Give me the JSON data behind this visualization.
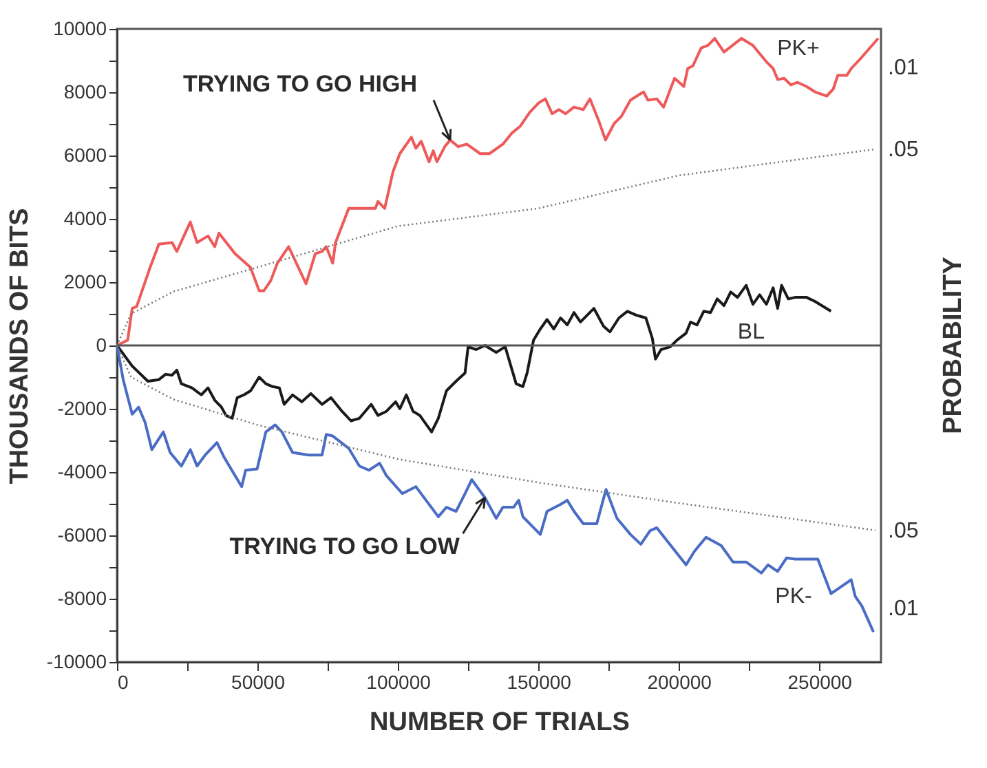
{
  "chart_data": {
    "type": "line",
    "xlabel": "NUMBER OF TRIALS",
    "ylabel": "THOUSANDS OF BITS",
    "y2label": "PROBABILITY",
    "xlim": [
      0,
      272000
    ],
    "xticks": [
      0,
      {
        "value": 25000,
        "label": null
      },
      50000,
      {
        "value": 75000,
        "label": null
      },
      100000,
      {
        "value": 125000,
        "label": null
      },
      150000,
      {
        "value": 175000,
        "label": null
      },
      200000,
      {
        "value": 225000,
        "label": null
      },
      250000
    ],
    "ylim": [
      -10000,
      10000
    ],
    "yticks": [
      -10000,
      {
        "value": -9000,
        "label": null
      },
      -8000,
      {
        "value": -7000,
        "label": null
      },
      -6000,
      {
        "value": -5000,
        "label": null
      },
      -4000,
      {
        "value": -3000,
        "label": null
      },
      -2000,
      {
        "value": -1000,
        "label": null
      },
      0,
      {
        "value": 1000,
        "label": null
      },
      2000,
      {
        "value": 3000,
        "label": null
      },
      4000,
      {
        "value": 5000,
        "label": null
      },
      6000,
      {
        "value": 7000,
        "label": null
      },
      8000,
      {
        "value": 9000,
        "label": null
      },
      10000
    ],
    "grid": false,
    "marker": "none",
    "ref_lines": [
      {
        "axis": "y",
        "value": 0,
        "color": "#555555"
      }
    ],
    "annotations": [
      {
        "text": "TRYING TO GO HIGH",
        "x": 118600,
        "y": 6490
      },
      {
        "text": "TRYING TO GO LOW",
        "x": 131000,
        "y": -4810
      },
      {
        "text": ".05",
        "x": 270000,
        "y": 6200
      },
      {
        "text": ".05",
        "x": 270000,
        "y": -5840
      },
      ".01",
      ".01"
    ],
    "series": [
      {
        "name": "PK+",
        "color": "#ee5a5a",
        "line_style": "solid",
        "x": [
          0,
          3800,
          5400,
          7000,
          11800,
          14900,
          19600,
          21300,
          26100,
          28500,
          32400,
          34800,
          36300,
          42000,
          47500,
          50600,
          52300,
          54700,
          57100,
          61100,
          67300,
          70600,
          73000,
          74500,
          76800,
          77800,
          82500,
          84900,
          92000,
          92900,
          95300,
          98300,
          100700,
          104800,
          106400,
          108300,
          111100,
          112600,
          113900,
          116700,
          118600,
          121500,
          124500,
          129300,
          132600,
          137400,
          140600,
          143600,
          146900,
          150100,
          152500,
          154900,
          157300,
          159700,
          162700,
          166000,
          168400,
          171500,
          173900,
          177000,
          179500,
          182800,
          185100,
          187500,
          189000,
          192200,
          194600,
          198500,
          201800,
          203200,
          205000,
          208000,
          210400,
          212800,
          216100,
          222300,
          226400,
          231200,
          233600,
          235200,
          237500,
          239900,
          242300,
          245500,
          248500,
          252700,
          255000,
          256600,
          259800,
          261400,
          264600,
          271000
        ],
        "values": [
          0,
          170,
          1170,
          1230,
          2470,
          3200,
          3250,
          2970,
          3900,
          3250,
          3460,
          3120,
          3550,
          2900,
          2470,
          1730,
          1730,
          2040,
          2600,
          3120,
          1950,
          2900,
          2970,
          3120,
          2600,
          3250,
          4330,
          4330,
          4330,
          4550,
          4330,
          5500,
          6060,
          6580,
          6230,
          6450,
          5800,
          6150,
          5800,
          6280,
          6490,
          6280,
          6360,
          6060,
          6060,
          6360,
          6710,
          6930,
          7360,
          7660,
          7790,
          7320,
          7450,
          7320,
          7530,
          7450,
          7790,
          7100,
          6490,
          7010,
          7230,
          7750,
          7880,
          8010,
          7750,
          7790,
          7530,
          8440,
          8180,
          8750,
          8830,
          9400,
          9480,
          9700,
          9270,
          9700,
          9480,
          8960,
          8750,
          8400,
          8440,
          8230,
          8310,
          8180,
          8010,
          7880,
          8100,
          8530,
          8530,
          8750,
          9050,
          9700
        ]
      },
      {
        "name": "BL",
        "color": "#1a1a1a",
        "line_style": "solid",
        "x": [
          0,
          5400,
          11000,
          14900,
          17300,
          19600,
          21300,
          22900,
          26700,
          30000,
          32400,
          34800,
          37200,
          38800,
          41000,
          42800,
          45200,
          47600,
          50600,
          53000,
          55400,
          57800,
          59500,
          62500,
          65800,
          69000,
          73000,
          76200,
          80100,
          83300,
          86300,
          90500,
          92900,
          95900,
          99200,
          100700,
          103000,
          105400,
          107800,
          112000,
          114400,
          117300,
          120700,
          123900,
          125000,
          127800,
          131000,
          135000,
          138200,
          142100,
          144500,
          146000,
          148300,
          150700,
          153100,
          155500,
          157900,
          160300,
          162700,
          165000,
          169800,
          173200,
          175500,
          178700,
          181700,
          185100,
          188300,
          190600,
          191700,
          193700,
          197000,
          199400,
          202600,
          204200,
          206500,
          208900,
          211300,
          213700,
          216100,
          218500,
          220900,
          224000,
          226400,
          228800,
          231200,
          233600,
          235200,
          236600,
          239000,
          241400,
          245500,
          248500,
          254200
        ],
        "values": [
          0,
          -650,
          -1130,
          -1080,
          -910,
          -940,
          -780,
          -1210,
          -1340,
          -1560,
          -1340,
          -1730,
          -1950,
          -2210,
          -2300,
          -1650,
          -1560,
          -1430,
          -1000,
          -1210,
          -1300,
          -1340,
          -1860,
          -1560,
          -1780,
          -1520,
          -1860,
          -1650,
          -2080,
          -2380,
          -2300,
          -1860,
          -2210,
          -2080,
          -1780,
          -2000,
          -1560,
          -2080,
          -2210,
          -2730,
          -2300,
          -1430,
          -1130,
          -870,
          -40,
          -130,
          0,
          -220,
          -40,
          -1210,
          -1300,
          -870,
          170,
          520,
          820,
          520,
          870,
          650,
          1040,
          740,
          1170,
          610,
          430,
          870,
          1080,
          950,
          870,
          220,
          -430,
          -130,
          -40,
          170,
          390,
          740,
          650,
          1080,
          1040,
          1470,
          1260,
          1690,
          1520,
          1900,
          1300,
          1600,
          1300,
          1820,
          1170,
          1900,
          1470,
          1520,
          1520,
          1390,
          1080
        ]
      },
      {
        "name": "PK-",
        "color": "#4a6cc4",
        "line_style": "solid",
        "x": [
          0,
          2200,
          5400,
          7700,
          10000,
          12400,
          14900,
          16500,
          18900,
          22900,
          26100,
          28500,
          31400,
          35600,
          38000,
          42000,
          44400,
          45800,
          49900,
          53000,
          56300,
          58700,
          62500,
          68200,
          73000,
          74500,
          76800,
          82500,
          86300,
          89700,
          93500,
          95900,
          101600,
          106400,
          114400,
          117300,
          120700,
          123900,
          126300,
          131000,
          135000,
          137400,
          141200,
          143000,
          144500,
          146900,
          150700,
          153100,
          157900,
          160300,
          162700,
          166000,
          170800,
          174100,
          178000,
          182800,
          186500,
          189800,
          192200,
          196000,
          202600,
          205600,
          209700,
          215100,
          219300,
          224000,
          229400,
          231800,
          235200,
          238400,
          241400,
          245500,
          249500,
          254200,
          261400,
          262800,
          265200,
          269300
        ],
        "values": [
          0,
          -1080,
          -2170,
          -1950,
          -2430,
          -3290,
          -2950,
          -2730,
          -3380,
          -3810,
          -3290,
          -3810,
          -3460,
          -3070,
          -3510,
          -4110,
          -4460,
          -3940,
          -3900,
          -2730,
          -2510,
          -2730,
          -3380,
          -3460,
          -3460,
          -2810,
          -2860,
          -3250,
          -3810,
          -3940,
          -3720,
          -4110,
          -4680,
          -4460,
          -5410,
          -5110,
          -5240,
          -4680,
          -4240,
          -4810,
          -5460,
          -5110,
          -5110,
          -4890,
          -5410,
          -5630,
          -5970,
          -5240,
          -5020,
          -4890,
          -5240,
          -5630,
          -5630,
          -4550,
          -5460,
          -5970,
          -6280,
          -5850,
          -5760,
          -6190,
          -6930,
          -6500,
          -6060,
          -6320,
          -6840,
          -6840,
          -7190,
          -6930,
          -7140,
          -6710,
          -6750,
          -6750,
          -6750,
          -7840,
          -7400,
          -7920,
          -8230,
          -9050
        ]
      },
      {
        "color": "#777777",
        "line_style": "dotted",
        "x": [
          0,
          5000,
          20000,
          50000,
          100000,
          150000,
          200000,
          270000
        ],
        "values": [
          0,
          1000,
          1700,
          2470,
          3770,
          4330,
          5370,
          6200
        ]
      },
      {
        "color": "#777777",
        "line_style": "dotted",
        "x": [
          0,
          5000,
          20000,
          50000,
          100000,
          150000,
          200000,
          270000
        ],
        "values": [
          0,
          -1000,
          -1700,
          -2510,
          -3590,
          -4330,
          -4980,
          -5840
        ]
      }
    ]
  }
}
